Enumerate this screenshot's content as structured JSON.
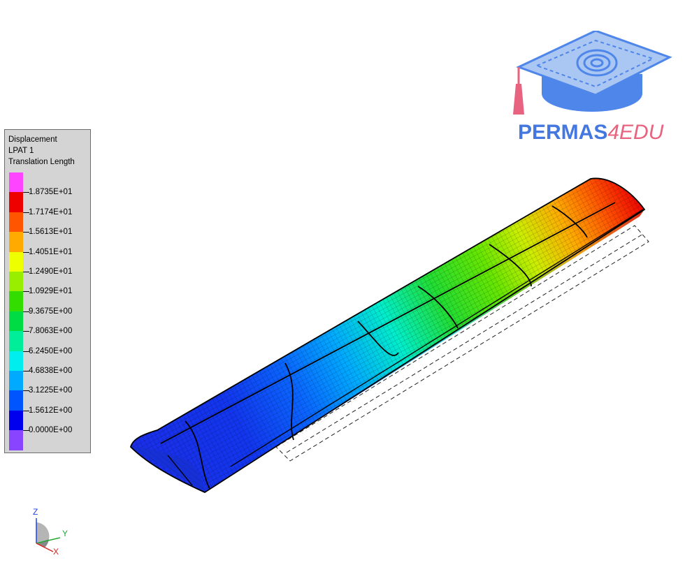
{
  "legend": {
    "result_type": "Displacement",
    "load_pattern": "LPAT 1",
    "quantity": "Translation Length",
    "colors": [
      "#ff44ff",
      "#ee0000",
      "#ff5500",
      "#ffaa00",
      "#eeff00",
      "#99ee00",
      "#33dd00",
      "#00dd44",
      "#00ee99",
      "#00eeee",
      "#00aaff",
      "#0055ff",
      "#0000ee",
      "#8844ff"
    ],
    "values": [
      "1.8735E+01",
      "1.7174E+01",
      "1.5613E+01",
      "1.4051E+01",
      "1.2490E+01",
      "1.0929E+01",
      "9.3675E+00",
      "7.8063E+00",
      "6.2450E+00",
      "4.6838E+00",
      "3.1225E+00",
      "1.5612E+00",
      "0.0000E+00"
    ]
  },
  "logo": {
    "word_main": "PERMAS",
    "word_accent": "4EDU",
    "main_color": "#4477e0",
    "accent_color": "#e8637f"
  },
  "triad": {
    "z_label": "Z",
    "y_label": "Y",
    "x_label": "X"
  },
  "model": {
    "description_colors": {
      "root": "#1030e0",
      "mid": "#00e0e0",
      "tip": "#ee1100"
    }
  }
}
